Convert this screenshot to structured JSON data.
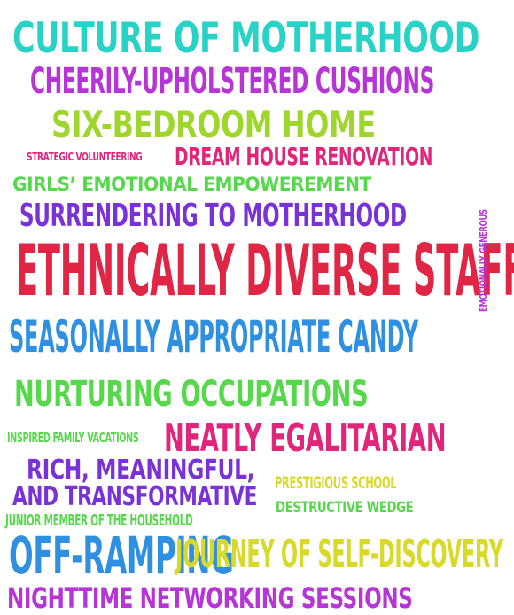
{
  "colors": {
    "teal": "#27d3c6",
    "purple": "#b735d6",
    "lime": "#9fd62b",
    "magenta": "#e0257a",
    "green": "#55d94a",
    "violet": "#7a32d8",
    "crimson": "#e02545",
    "blue": "#2f8fe0",
    "yellow": "#d9d92a"
  },
  "words": {
    "w1": "Culture of Motherhood",
    "w2": "Cheerily-Upholstered Cushions",
    "w3": "Six-Bedroom Home",
    "w4": "Strategic Volunteering",
    "w5": "Dream House Renovation",
    "w6": "Girls’ Emotional Empowerement",
    "w7": "Surrendering to Motherhood",
    "w8": "Ethnically Diverse Staff",
    "w9": "Emotionally Generous",
    "w10": "Seasonally Appropriate Candy",
    "w11": "Nurturing Occupations",
    "w12": "Inspired Family Vacations",
    "w13": "Neatly Egalitarian",
    "w14": "Rich, Meaningful,",
    "w15": "and Transformative",
    "w16": "Prestigious School",
    "w17": "Junior Member of the Household",
    "w18": "Destructive Wedge",
    "w19": "Off-Ramping",
    "w20": "Journey of Self-Discovery",
    "w21": "Nighttime Networking Sessions"
  }
}
